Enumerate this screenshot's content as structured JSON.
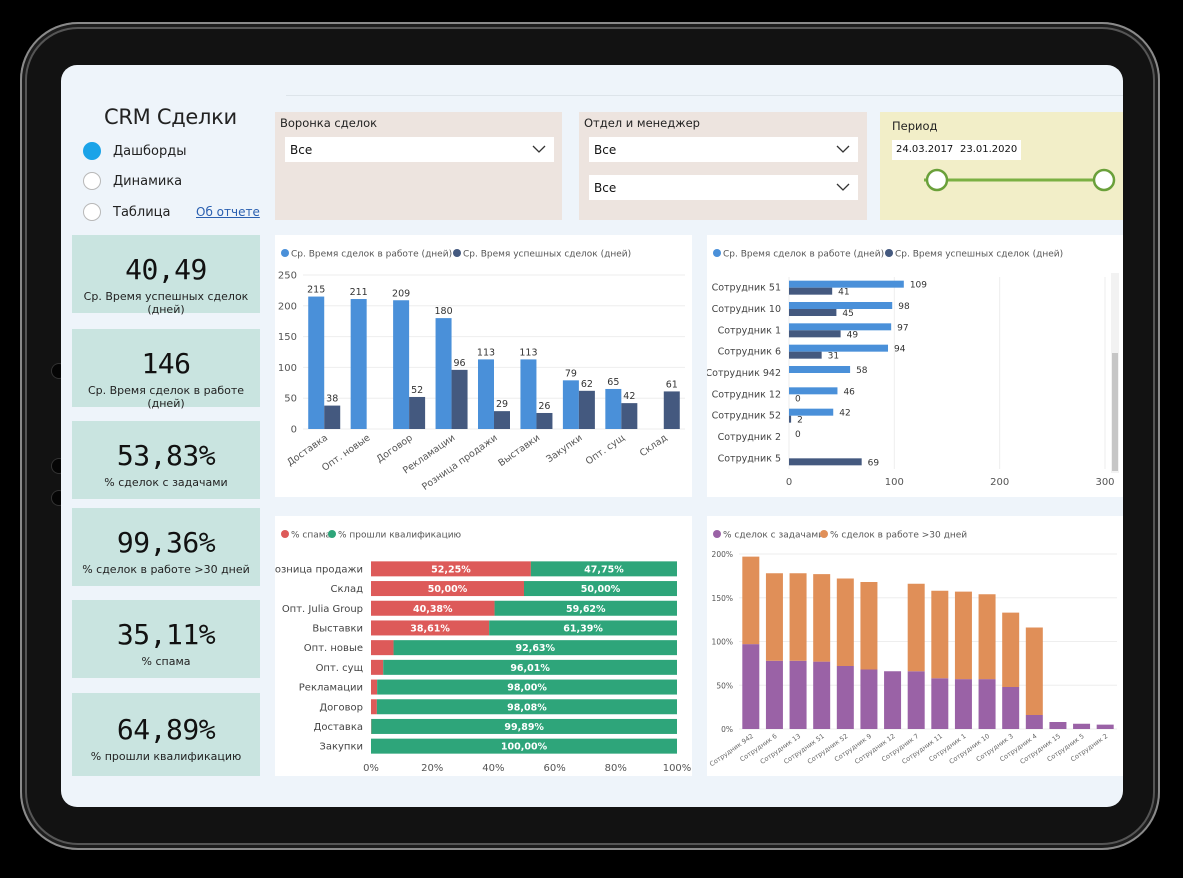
{
  "app": {
    "title": "CRM Сделки",
    "about_link": "Об отчете"
  },
  "nav": [
    {
      "label": "Дашборды",
      "selected": true
    },
    {
      "label": "Динамика",
      "selected": false
    },
    {
      "label": "Таблица",
      "selected": false
    }
  ],
  "kpis": [
    {
      "value": "40,49",
      "label": "Ср. Время успешных сделок (дней)"
    },
    {
      "value": "146",
      "label": "Ср. Время сделок в работе (дней)"
    },
    {
      "value": "53,83%",
      "label": "% сделок с задачами"
    },
    {
      "value": "99,36%",
      "label": "% сделок в работе >30 дней"
    },
    {
      "value": "35,11%",
      "label": "% спама"
    },
    {
      "value": "64,89%",
      "label": "% прошли квалификацию"
    }
  ],
  "filters": {
    "funnel": {
      "label": "Воронка сделок",
      "value": "Все"
    },
    "manager": {
      "label": "Отдел и менеджер",
      "value1": "Все",
      "value2": "Все"
    },
    "period": {
      "label": "Период",
      "start": "24.03.2017",
      "end": "23.01.2020",
      "start_fraction": 0.0,
      "end_fraction": 1.0
    }
  },
  "colors": {
    "series_light_blue": "#4a90d9",
    "series_dark_blue": "#44597f",
    "spam_red": "#dd5a59",
    "qualified_green": "#2ea57a",
    "purple": "#9a62a6",
    "orange": "#e08f58",
    "kpi_bg": "#c9e4e0"
  },
  "chart_data": [
    {
      "type": "bar",
      "categories": [
        "Доставка",
        "Опт. новые",
        "Договор",
        "Рекламации",
        "Розница продажи",
        "Выставки",
        "Закупки",
        "Опт. сущ",
        "Склад"
      ],
      "series": [
        {
          "name": "Ср. Время сделок в работе (дней)",
          "color": "#4a90d9",
          "values": [
            215,
            211,
            209,
            180,
            113,
            113,
            79,
            65,
            null
          ]
        },
        {
          "name": "Ср. Время успешных сделок (дней)",
          "color": "#44597f",
          "values": [
            38,
            null,
            52,
            96,
            29,
            26,
            62,
            42,
            61
          ]
        }
      ],
      "y_ticks": [
        "0",
        "50",
        "100",
        "150",
        "200",
        "250"
      ],
      "ylim": [
        0,
        250
      ],
      "legend": "top-left"
    },
    {
      "type": "bar",
      "orientation": "horizontal",
      "categories": [
        "Сотрудник 51",
        "Сотрудник 10",
        "Сотрудник 1",
        "Сотрудник 6",
        "Сотрудник 942",
        "Сотрудник 12",
        "Сотрудник 52",
        "Сотрудник 2",
        "Сотрудник 5"
      ],
      "series": [
        {
          "name": "Ср. Время сделок в работе (дней)",
          "color": "#4a90d9",
          "values": [
            109,
            98,
            97,
            94,
            58,
            46,
            42,
            0,
            null
          ]
        },
        {
          "name": "Ср. Время успешных сделок (дней)",
          "color": "#44597f",
          "values": [
            41,
            45,
            49,
            31,
            null,
            0,
            2,
            null,
            69
          ]
        }
      ],
      "x_ticks": [
        "0",
        "100",
        "200",
        "300"
      ],
      "xlim": [
        0,
        300
      ],
      "legend": "top-left"
    },
    {
      "type": "bar",
      "stacked": "percent",
      "orientation": "horizontal",
      "categories": [
        "Розница продажи",
        "Склад",
        "Опт. Julia Group",
        "Выставки",
        "Опт. новые",
        "Опт. сущ",
        "Рекламации",
        "Договор",
        "Доставка",
        "Закупки"
      ],
      "series": [
        {
          "name": "% спама",
          "color": "#dd5a59",
          "values": [
            52.25,
            50.0,
            40.38,
            38.61,
            7.37,
            3.99,
            2.0,
            1.92,
            0.11,
            0.0
          ]
        },
        {
          "name": "% прошли квалификацию",
          "color": "#2ea57a",
          "values": [
            47.75,
            50.0,
            59.62,
            61.39,
            92.63,
            96.01,
            98.0,
            98.08,
            99.89,
            100.0
          ]
        }
      ],
      "spam_labels": [
        "52,25%",
        "50,00%",
        "40,38%",
        "38,61%",
        "",
        "",
        "",
        "",
        "",
        ""
      ],
      "qual_labels": [
        "47,75%",
        "50,00%",
        "59,62%",
        "61,39%",
        "92,63%",
        "96,01%",
        "98,00%",
        "98,08%",
        "99,89%",
        "100,00%"
      ],
      "x_ticks": [
        "0%",
        "20%",
        "40%",
        "60%",
        "80%",
        "100%"
      ],
      "legend": "top-left"
    },
    {
      "type": "bar",
      "stacked": true,
      "categories": [
        "Сотрудник 942",
        "Сотрудник 6",
        "Сотрудник 13",
        "Сотрудник 51",
        "Сотрудник 52",
        "Сотрудник 9",
        "Сотрудник 12",
        "Сотрудник 7",
        "Сотрудник 11",
        "Сотрудник 1",
        "Сотрудник 10",
        "Сотрудник 3",
        "Сотрудник 4",
        "Сотрудник 15",
        "Сотрудник 5",
        "Сотрудник 2"
      ],
      "series": [
        {
          "name": "% сделок с задачами",
          "color": "#9a62a6",
          "values": [
            97,
            78,
            78,
            77,
            72,
            68,
            66,
            66,
            58,
            57,
            57,
            48,
            16,
            8,
            6,
            5
          ]
        },
        {
          "name": "% сделок в работе >30 дней",
          "color": "#e08f58",
          "values": [
            100,
            100,
            100,
            100,
            100,
            100,
            0,
            100,
            100,
            100,
            97,
            85,
            100,
            0,
            0,
            0
          ]
        }
      ],
      "y_ticks": [
        "0%",
        "50%",
        "100%",
        "150%",
        "200%"
      ],
      "ylim": [
        0,
        200
      ],
      "legend": "top-left"
    }
  ]
}
